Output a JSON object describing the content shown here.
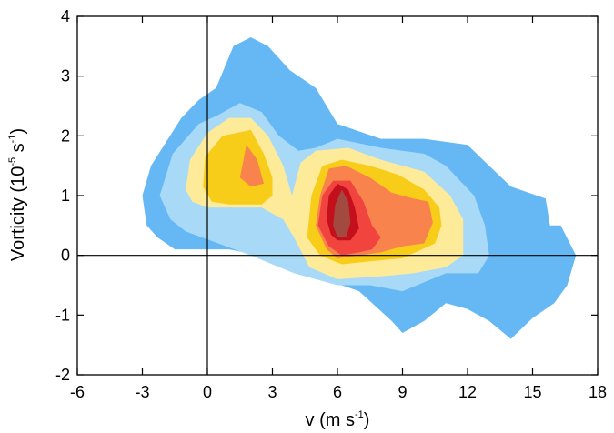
{
  "chart_data": {
    "type": "filled-contour",
    "title": "",
    "xlabel": {
      "text": "v (m s",
      "sup": "-1",
      "close": ")"
    },
    "ylabel": {
      "text": "Vorticity (10",
      "sup1": "-5",
      "mid": " s",
      "sup2": "-1",
      "close": ")"
    },
    "xlim": [
      -6,
      18
    ],
    "ylim": [
      -2,
      4
    ],
    "xticks": [
      -6,
      -3,
      0,
      3,
      6,
      9,
      12,
      15,
      18
    ],
    "yticks": [
      -2,
      -1,
      0,
      1,
      2,
      3,
      4
    ],
    "xtick_labels": [
      "-6",
      "-3",
      "0",
      "3",
      "6",
      "9",
      "12",
      "15",
      "18"
    ],
    "ytick_labels": [
      "-2",
      "-1",
      "0",
      "1",
      "2",
      "3",
      "4"
    ],
    "reference_lines": {
      "x": 0,
      "y": 0
    },
    "levels": [
      {
        "color": "#66b8f5",
        "polygons": [
          [
            [
              -3.0,
              1.0
            ],
            [
              -2.6,
              1.5
            ],
            [
              -1.2,
              2.3
            ],
            [
              -0.4,
              2.6
            ],
            [
              0.4,
              2.8
            ],
            [
              1.2,
              3.5
            ],
            [
              2.0,
              3.65
            ],
            [
              2.8,
              3.5
            ],
            [
              3.8,
              3.1
            ],
            [
              5.0,
              2.8
            ],
            [
              6.0,
              2.2
            ],
            [
              8.0,
              1.95
            ],
            [
              10.0,
              1.95
            ],
            [
              12.0,
              1.85
            ],
            [
              13.0,
              1.5
            ],
            [
              14.0,
              1.15
            ],
            [
              15.6,
              0.95
            ],
            [
              15.8,
              0.5
            ],
            [
              16.3,
              0.5
            ],
            [
              17.0,
              0.0
            ],
            [
              16.6,
              -0.5
            ],
            [
              16.0,
              -0.8
            ],
            [
              15.0,
              -1.05
            ],
            [
              14.0,
              -1.4
            ],
            [
              13.0,
              -1.1
            ],
            [
              12.0,
              -0.9
            ],
            [
              11.0,
              -0.8
            ],
            [
              10.0,
              -1.1
            ],
            [
              9.0,
              -1.3
            ],
            [
              8.5,
              -1.1
            ],
            [
              7.0,
              -0.6
            ],
            [
              5.0,
              -0.35
            ],
            [
              3.0,
              -0.05
            ],
            [
              1.0,
              0.1
            ],
            [
              -0.5,
              0.1
            ],
            [
              -1.5,
              0.1
            ],
            [
              -2.3,
              0.3
            ],
            [
              -2.8,
              0.5
            ]
          ]
        ]
      },
      {
        "color": "#a8daf7",
        "polygons": [
          [
            [
              -2.2,
              1.0
            ],
            [
              -1.6,
              1.7
            ],
            [
              -0.4,
              2.2
            ],
            [
              0.5,
              2.35
            ],
            [
              1.5,
              2.55
            ],
            [
              2.5,
              2.4
            ],
            [
              3.3,
              2.0
            ],
            [
              4.2,
              1.75
            ],
            [
              5.0,
              1.8
            ],
            [
              6.0,
              1.95
            ],
            [
              8.0,
              1.8
            ],
            [
              10.0,
              1.7
            ],
            [
              11.0,
              1.5
            ],
            [
              12.3,
              1.0
            ],
            [
              12.8,
              0.5
            ],
            [
              13.0,
              0.0
            ],
            [
              12.5,
              -0.3
            ],
            [
              11.0,
              -0.3
            ],
            [
              9.0,
              -0.6
            ],
            [
              7.5,
              -0.5
            ],
            [
              6.0,
              -0.5
            ],
            [
              4.0,
              -0.3
            ],
            [
              2.0,
              0.0
            ],
            [
              0.5,
              0.2
            ],
            [
              -1.0,
              0.4
            ],
            [
              -1.7,
              0.6
            ]
          ]
        ]
      },
      {
        "color": "#fdeb9a",
        "polygons": [
          [
            [
              -1.0,
              1.1
            ],
            [
              -0.8,
              1.6
            ],
            [
              0.0,
              2.05
            ],
            [
              1.0,
              2.3
            ],
            [
              2.0,
              2.3
            ],
            [
              2.8,
              2.0
            ],
            [
              3.5,
              1.5
            ],
            [
              3.9,
              1.0
            ],
            [
              4.3,
              1.55
            ],
            [
              5.0,
              1.75
            ],
            [
              6.5,
              1.8
            ],
            [
              8.0,
              1.6
            ],
            [
              10.0,
              1.4
            ],
            [
              11.2,
              1.0
            ],
            [
              11.8,
              0.6
            ],
            [
              11.8,
              0.0
            ],
            [
              11.0,
              -0.2
            ],
            [
              9.5,
              -0.3
            ],
            [
              8.0,
              -0.35
            ],
            [
              6.0,
              -0.4
            ],
            [
              4.7,
              -0.2
            ],
            [
              4.0,
              0.3
            ],
            [
              3.5,
              0.6
            ],
            [
              2.5,
              0.8
            ],
            [
              1.0,
              0.8
            ],
            [
              0.0,
              0.8
            ],
            [
              -0.7,
              0.9
            ]
          ]
        ]
      },
      {
        "color": "#f7cd19",
        "polygons": [
          [
            [
              -0.2,
              1.15
            ],
            [
              -0.1,
              1.65
            ],
            [
              0.7,
              2.0
            ],
            [
              2.0,
              2.1
            ],
            [
              2.6,
              1.7
            ],
            [
              3.0,
              1.3
            ],
            [
              3.0,
              1.0
            ],
            [
              2.5,
              0.85
            ],
            [
              1.0,
              0.85
            ],
            [
              0.2,
              0.9
            ]
          ],
          [
            [
              4.6,
              0.3
            ],
            [
              4.8,
              1.0
            ],
            [
              5.3,
              1.5
            ],
            [
              6.2,
              1.6
            ],
            [
              7.5,
              1.5
            ],
            [
              8.8,
              1.35
            ],
            [
              10.0,
              1.1
            ],
            [
              10.7,
              0.8
            ],
            [
              10.8,
              0.5
            ],
            [
              10.5,
              0.2
            ],
            [
              9.0,
              -0.05
            ],
            [
              7.5,
              -0.1
            ],
            [
              6.2,
              -0.15
            ],
            [
              5.2,
              0.0
            ]
          ]
        ]
      },
      {
        "color": "#f9834d",
        "polygons": [
          [
            [
              1.5,
              1.3
            ],
            [
              1.8,
              1.85
            ],
            [
              2.3,
              1.6
            ],
            [
              2.6,
              1.2
            ],
            [
              2.0,
              1.15
            ]
          ],
          [
            [
              5.0,
              0.5
            ],
            [
              5.2,
              1.0
            ],
            [
              5.6,
              1.45
            ],
            [
              6.4,
              1.5
            ],
            [
              7.5,
              1.3
            ],
            [
              8.5,
              1.05
            ],
            [
              9.5,
              0.95
            ],
            [
              10.2,
              0.9
            ],
            [
              10.4,
              0.55
            ],
            [
              10.0,
              0.2
            ],
            [
              9.0,
              0.15
            ],
            [
              8.0,
              0.05
            ],
            [
              7.0,
              0.0
            ],
            [
              6.0,
              -0.05
            ],
            [
              5.5,
              0.1
            ]
          ]
        ]
      },
      {
        "color": "#f2443f",
        "polygons": [
          [
            [
              5.1,
              0.5
            ],
            [
              5.3,
              1.0
            ],
            [
              5.8,
              1.25
            ],
            [
              6.6,
              1.25
            ],
            [
              7.2,
              0.9
            ],
            [
              7.6,
              0.5
            ],
            [
              8.0,
              0.3
            ],
            [
              7.6,
              0.1
            ],
            [
              7.0,
              0.05
            ],
            [
              6.2,
              0.0
            ],
            [
              5.6,
              0.15
            ]
          ]
        ]
      },
      {
        "color": "#c40f1c",
        "polygons": [
          [
            [
              5.5,
              0.6
            ],
            [
              5.6,
              1.0
            ],
            [
              6.0,
              1.2
            ],
            [
              6.5,
              1.1
            ],
            [
              6.8,
              0.8
            ],
            [
              7.0,
              0.45
            ],
            [
              6.6,
              0.25
            ],
            [
              6.0,
              0.25
            ],
            [
              5.7,
              0.35
            ]
          ]
        ]
      },
      {
        "color": "#a24a40",
        "polygons": [
          [
            [
              5.8,
              0.5
            ],
            [
              5.9,
              0.85
            ],
            [
              6.2,
              1.1
            ],
            [
              6.5,
              0.9
            ],
            [
              6.6,
              0.55
            ],
            [
              6.4,
              0.3
            ],
            [
              6.0,
              0.3
            ]
          ]
        ]
      }
    ]
  }
}
